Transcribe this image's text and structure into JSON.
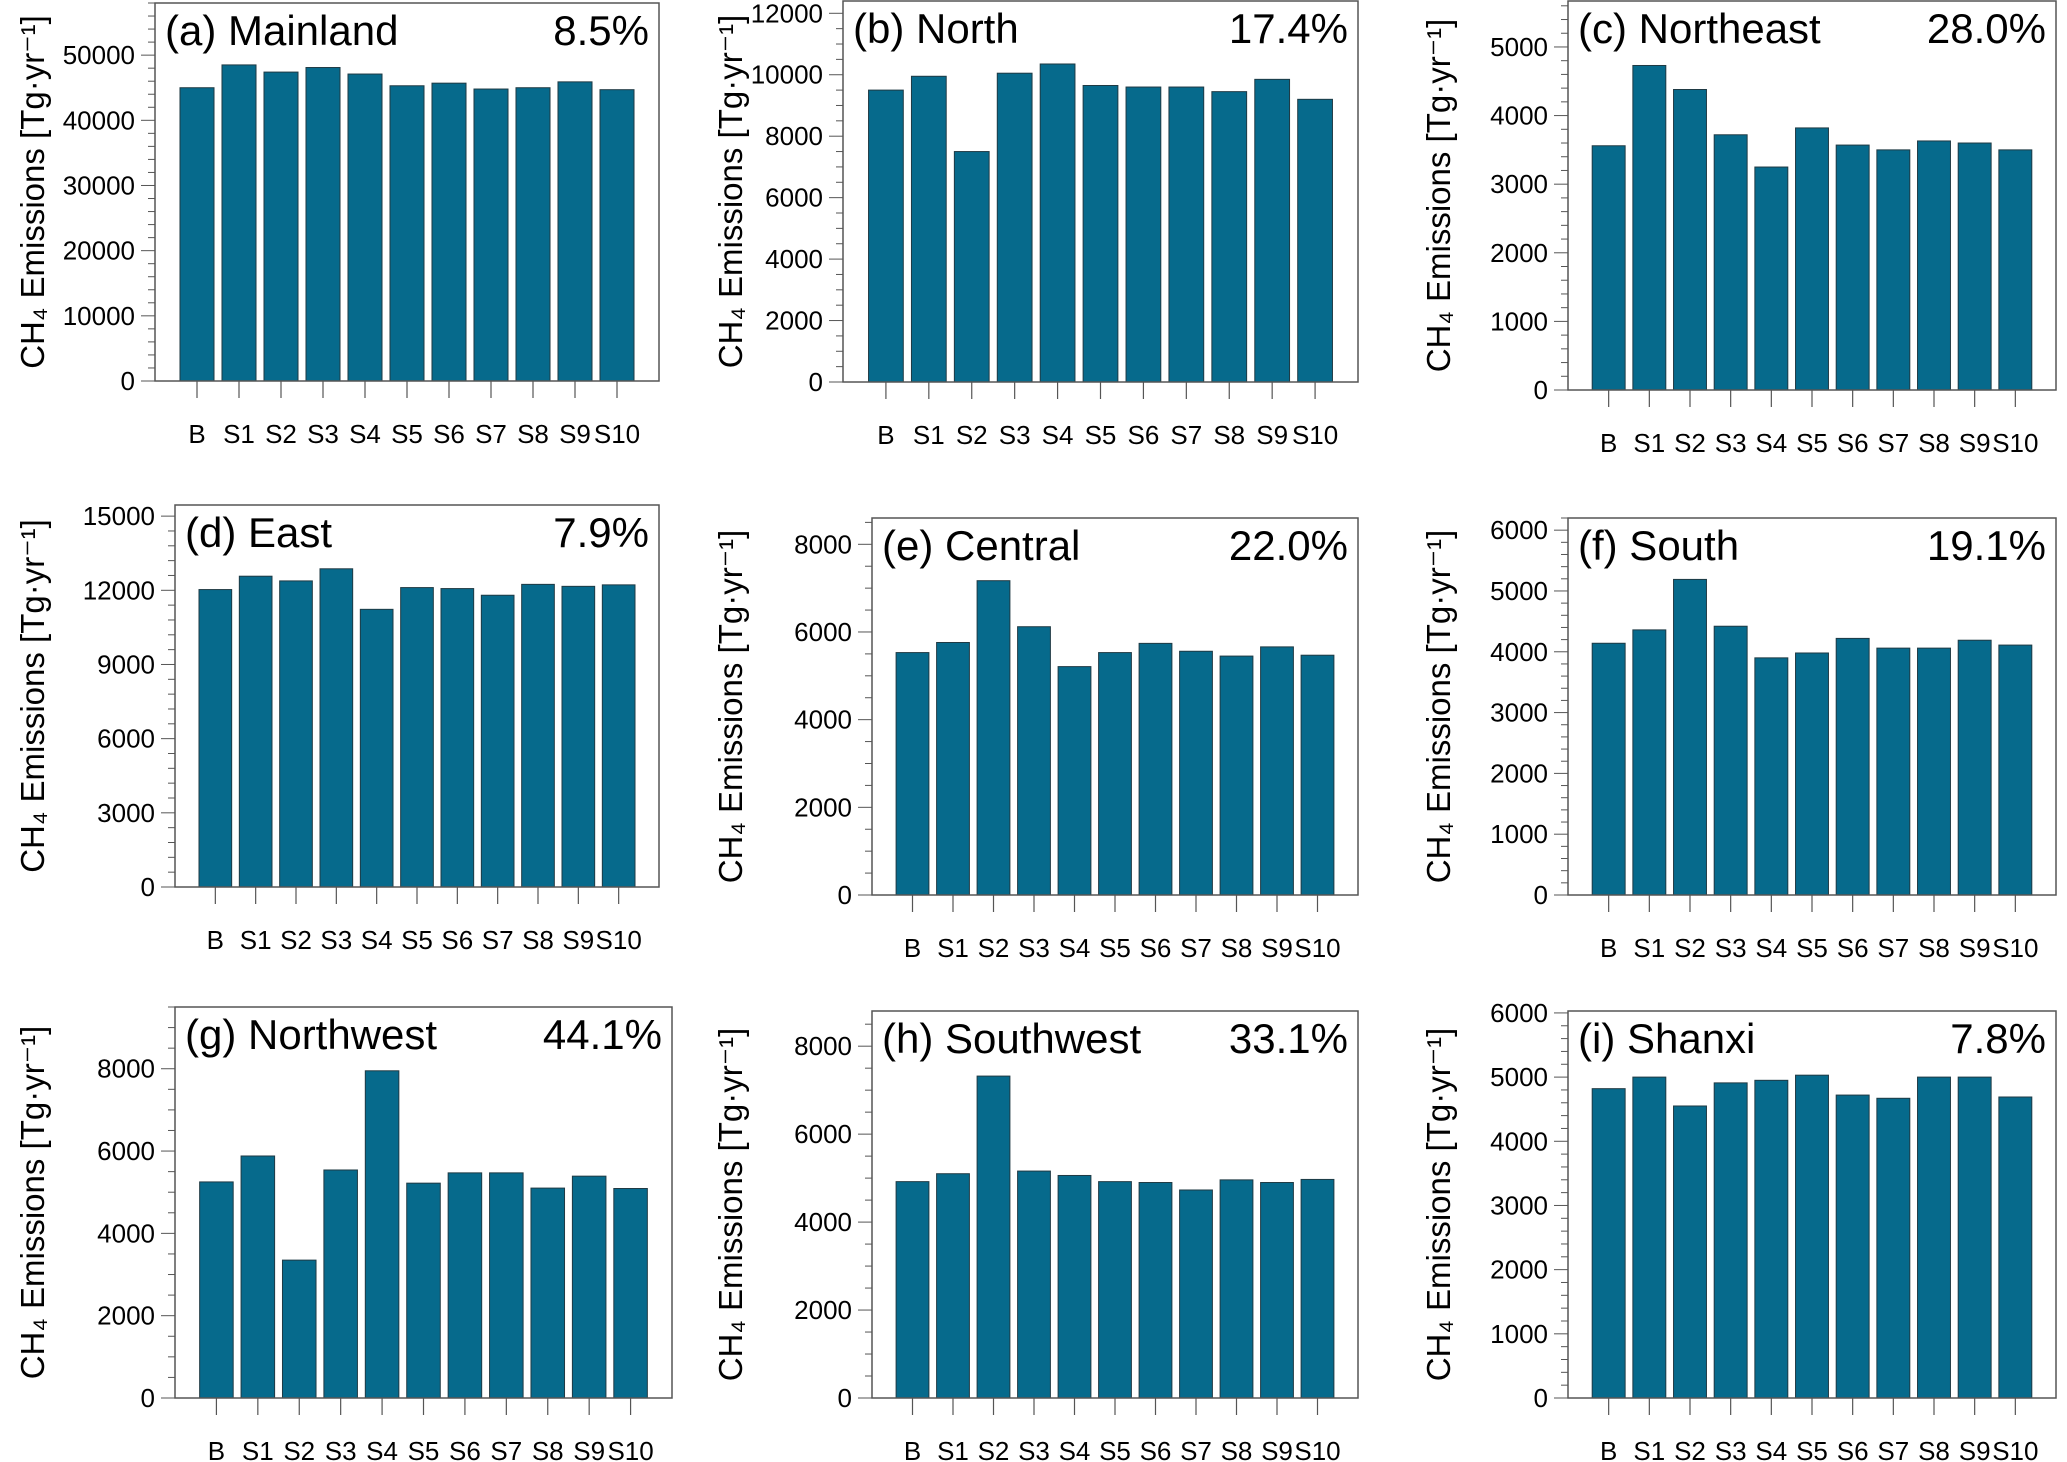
{
  "chart_data": [
    {
      "type": "bar",
      "panel": "(a)",
      "title": "(a) Mainland",
      "annotation": "8.5%",
      "ylabel": "CH₄ Emissions [Tg·yr⁻¹]",
      "categories": [
        "B",
        "S1",
        "S2",
        "S3",
        "S4",
        "S5",
        "S6",
        "S7",
        "S8",
        "S9",
        "S10"
      ],
      "values": [
        45000,
        48500,
        47400,
        48100,
        47100,
        45300,
        45700,
        44800,
        45000,
        45900,
        44700
      ],
      "ylim": [
        0,
        58000
      ],
      "yticks": [
        0,
        10000,
        20000,
        30000,
        40000,
        50000
      ],
      "grid": false
    },
    {
      "type": "bar",
      "panel": "(b)",
      "title": "(b) North",
      "annotation": "17.4%",
      "ylabel": "CH₄ Emissions [Tg·yr⁻¹]",
      "categories": [
        "B",
        "S1",
        "S2",
        "S3",
        "S4",
        "S5",
        "S6",
        "S7",
        "S8",
        "S9",
        "S10"
      ],
      "values": [
        9500,
        9950,
        7500,
        10050,
        10350,
        9650,
        9600,
        9600,
        9450,
        9850,
        9200
      ],
      "ylim": [
        0,
        12400
      ],
      "yticks": [
        0,
        2000,
        4000,
        6000,
        8000,
        10000,
        12000
      ],
      "grid": false
    },
    {
      "type": "bar",
      "panel": "(c)",
      "title": "(c) Northeast",
      "annotation": "28.0%",
      "ylabel": "CH₄ Emissions [Tg·yr⁻¹]",
      "categories": [
        "B",
        "S1",
        "S2",
        "S3",
        "S4",
        "S5",
        "S6",
        "S7",
        "S8",
        "S9",
        "S10"
      ],
      "values": [
        3560,
        4730,
        4380,
        3720,
        3250,
        3820,
        3570,
        3500,
        3630,
        3600,
        3500
      ],
      "ylim": [
        0,
        5670
      ],
      "yticks": [
        0,
        1000,
        2000,
        3000,
        4000,
        5000
      ],
      "grid": false
    },
    {
      "type": "bar",
      "panel": "(d)",
      "title": "(d) East",
      "annotation": "7.9%",
      "ylabel": "CH₄ Emissions [Tg·yr⁻¹]",
      "categories": [
        "B",
        "S1",
        "S2",
        "S3",
        "S4",
        "S5",
        "S6",
        "S7",
        "S8",
        "S9",
        "S10"
      ],
      "values": [
        12030,
        12570,
        12380,
        12870,
        11230,
        12110,
        12070,
        11800,
        12240,
        12160,
        12220
      ],
      "ylim": [
        0,
        15450
      ],
      "yticks": [
        0,
        3000,
        6000,
        9000,
        12000,
        15000
      ],
      "grid": false
    },
    {
      "type": "bar",
      "panel": "(e)",
      "title": "(e) Central",
      "annotation": "22.0%",
      "ylabel": "CH₄ Emissions [Tg·yr⁻¹]",
      "categories": [
        "B",
        "S1",
        "S2",
        "S3",
        "S4",
        "S5",
        "S6",
        "S7",
        "S8",
        "S9",
        "S10"
      ],
      "values": [
        5530,
        5760,
        7170,
        6120,
        5210,
        5530,
        5740,
        5560,
        5450,
        5660,
        5470
      ],
      "ylim": [
        0,
        8600
      ],
      "yticks": [
        0,
        2000,
        4000,
        6000,
        8000
      ],
      "grid": false
    },
    {
      "type": "bar",
      "panel": "(f)",
      "title": "(f) South",
      "annotation": "19.1%",
      "ylabel": "CH₄ Emissions [Tg·yr⁻¹]",
      "categories": [
        "B",
        "S1",
        "S2",
        "S3",
        "S4",
        "S5",
        "S6",
        "S7",
        "S8",
        "S9",
        "S10"
      ],
      "values": [
        4140,
        4360,
        5190,
        4420,
        3900,
        3980,
        4220,
        4060,
        4060,
        4190,
        4110
      ],
      "ylim": [
        0,
        6200
      ],
      "yticks": [
        0,
        1000,
        2000,
        3000,
        4000,
        5000,
        6000
      ],
      "grid": false
    },
    {
      "type": "bar",
      "panel": "(g)",
      "title": "(g) Northwest",
      "annotation": "44.1%",
      "ylabel": "CH₄ Emissions [Tg·yr⁻¹]",
      "categories": [
        "B",
        "S1",
        "S2",
        "S3",
        "S4",
        "S5",
        "S6",
        "S7",
        "S8",
        "S9",
        "S10"
      ],
      "values": [
        5250,
        5880,
        3350,
        5540,
        7950,
        5220,
        5470,
        5470,
        5100,
        5390,
        5090
      ],
      "ylim": [
        0,
        9500
      ],
      "yticks": [
        0,
        2000,
        4000,
        6000,
        8000
      ],
      "grid": false
    },
    {
      "type": "bar",
      "panel": "(h)",
      "title": "(h) Southwest",
      "annotation": "33.1%",
      "ylabel": "CH₄ Emissions [Tg·yr⁻¹]",
      "categories": [
        "B",
        "S1",
        "S2",
        "S3",
        "S4",
        "S5",
        "S6",
        "S7",
        "S8",
        "S9",
        "S10"
      ],
      "values": [
        4920,
        5100,
        7320,
        5160,
        5060,
        4920,
        4900,
        4730,
        4960,
        4900,
        4970
      ],
      "ylim": [
        0,
        8800
      ],
      "yticks": [
        0,
        2000,
        4000,
        6000,
        8000
      ],
      "grid": false
    },
    {
      "type": "bar",
      "panel": "(i)",
      "title": "(i) Shanxi",
      "annotation": "7.8%",
      "ylabel": "CH₄ Emissions [Tg·yr⁻¹]",
      "categories": [
        "B",
        "S1",
        "S2",
        "S3",
        "S4",
        "S5",
        "S6",
        "S7",
        "S8",
        "S9",
        "S10"
      ],
      "values": [
        4820,
        5000,
        4550,
        4910,
        4950,
        5030,
        4720,
        4670,
        5000,
        5000,
        4690
      ],
      "ylim": [
        0,
        6030
      ],
      "yticks": [
        0,
        1000,
        2000,
        3000,
        4000,
        5000,
        6000
      ],
      "grid": false
    }
  ],
  "colors": {
    "bar": "#066a8c",
    "bar_edge": "#1f3a44",
    "axis": "#555555",
    "text": "#000000"
  }
}
